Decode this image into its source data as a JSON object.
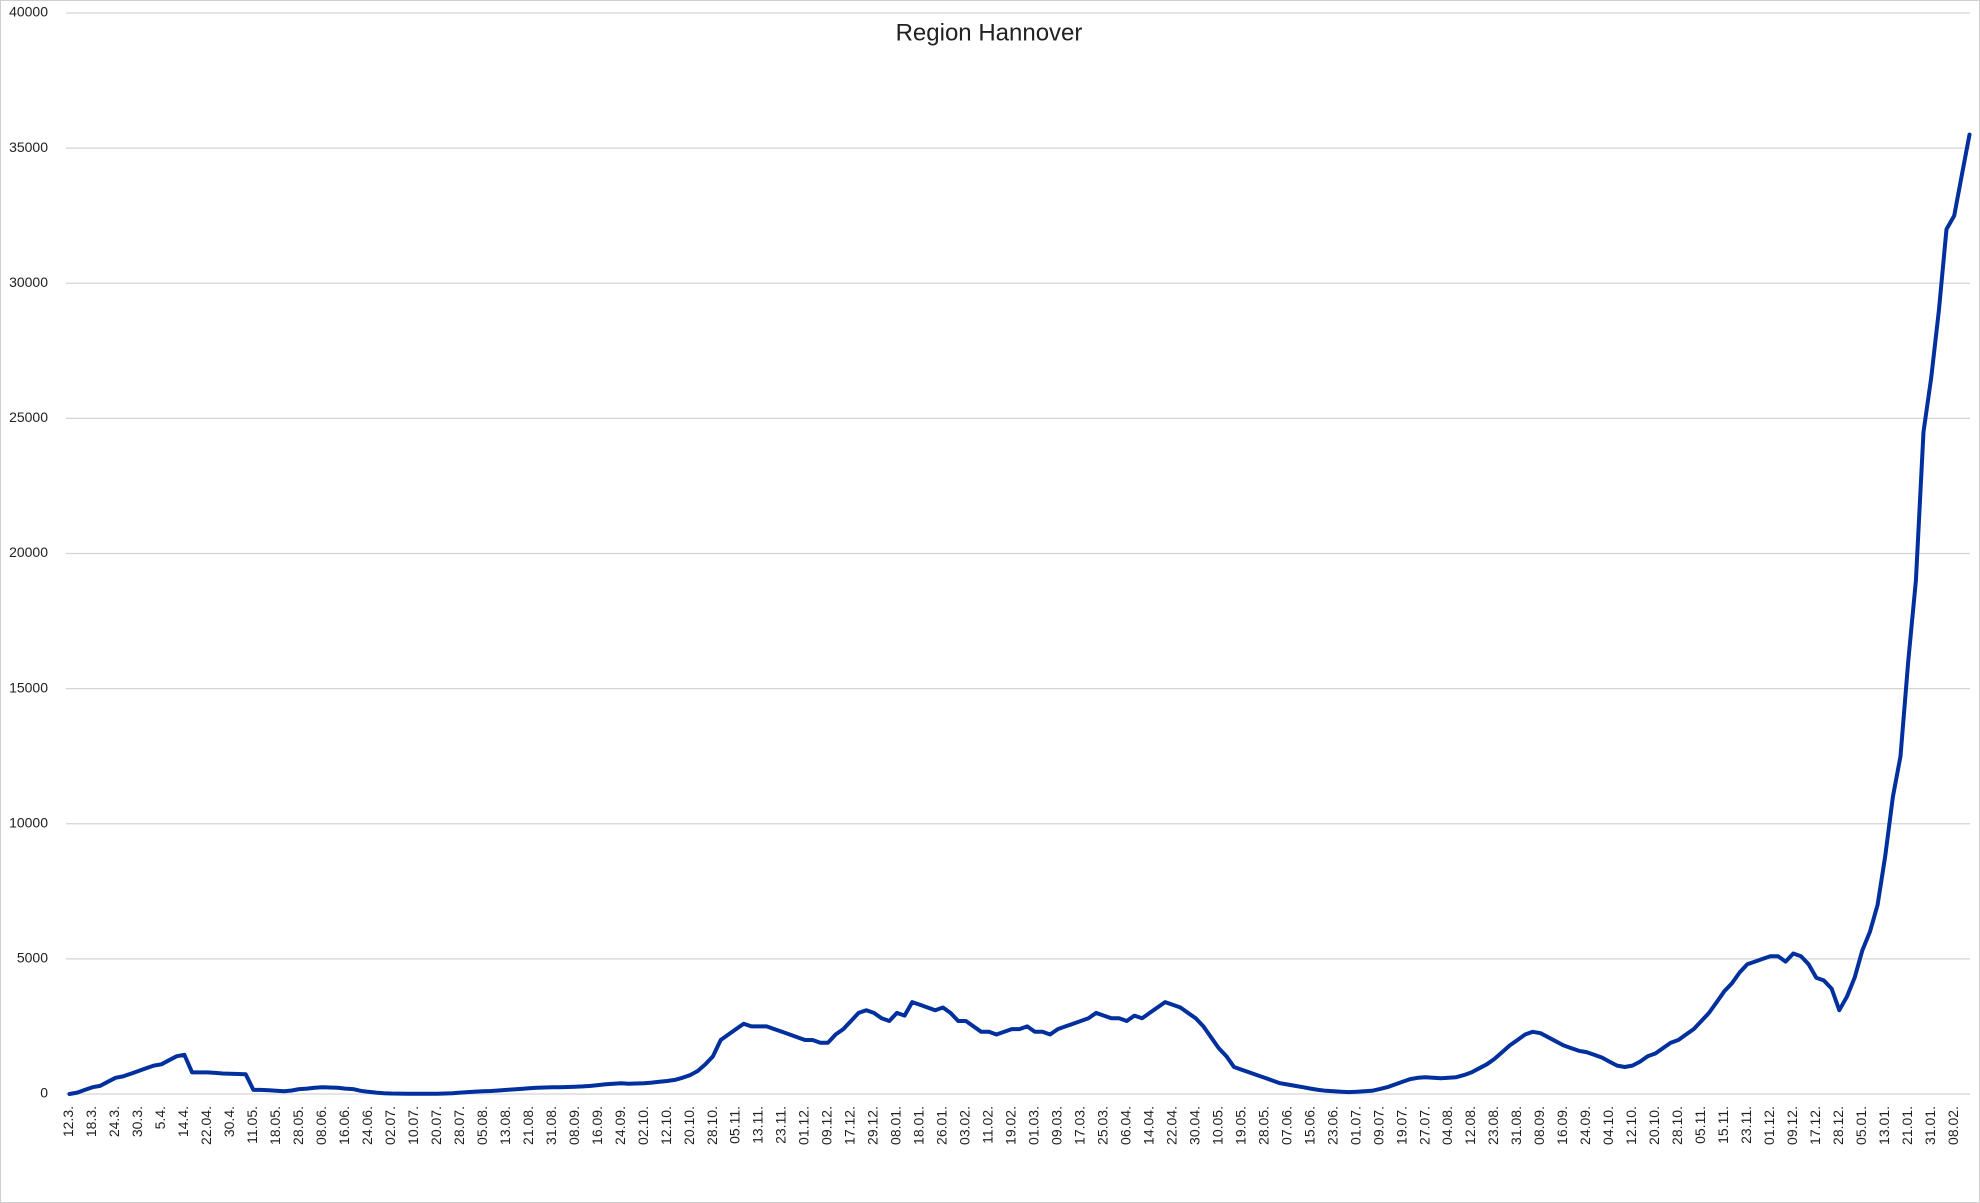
{
  "chart_data": {
    "type": "line",
    "title": "Region Hannover",
    "categories": [
      "12.3.",
      null,
      null,
      "18.3.",
      null,
      null,
      "24.3.",
      null,
      null,
      "30.3.",
      null,
      null,
      "5.4.",
      null,
      null,
      "14.4.",
      null,
      null,
      "22.04.",
      null,
      null,
      "30.4.",
      null,
      null,
      "11.05.",
      null,
      null,
      "18.05.",
      null,
      null,
      "28.05.",
      null,
      null,
      "08.06.",
      null,
      null,
      "16.06.",
      null,
      null,
      "24.06.",
      null,
      null,
      "02.07.",
      null,
      null,
      "10.07.",
      null,
      null,
      "20.07.",
      null,
      null,
      "28.07.",
      null,
      null,
      "05.08.",
      null,
      null,
      "13.08.",
      null,
      null,
      "21.08.",
      null,
      null,
      "31.08.",
      null,
      null,
      "08.09.",
      null,
      null,
      "16.09.",
      null,
      null,
      "24.09.",
      null,
      null,
      "02.10.",
      null,
      null,
      "12.10.",
      null,
      null,
      "20.10.",
      null,
      null,
      "28.10.",
      null,
      null,
      "05.11.",
      null,
      null,
      "13.11.",
      null,
      null,
      "23.11.",
      null,
      null,
      "01.12.",
      null,
      null,
      "09.12.",
      null,
      null,
      "17.12.",
      null,
      null,
      "29.12.",
      null,
      null,
      "08.01.",
      null,
      null,
      "18.01.",
      null,
      null,
      "26.01.",
      null,
      null,
      "03.02.",
      null,
      null,
      "11.02.",
      null,
      null,
      "19.02.",
      null,
      null,
      "01.03.",
      null,
      null,
      "09.03.",
      null,
      null,
      "17.03.",
      null,
      null,
      "25.03.",
      null,
      null,
      "06.04.",
      null,
      null,
      "14.04.",
      null,
      null,
      "22.04.",
      null,
      null,
      "30.04.",
      null,
      null,
      "10.05.",
      null,
      null,
      "19.05.",
      null,
      null,
      "28.05.",
      null,
      null,
      "07.06.",
      null,
      null,
      "15.06.",
      null,
      null,
      "23.06.",
      null,
      null,
      "01.07.",
      null,
      null,
      "09.07.",
      null,
      null,
      "19.07.",
      null,
      null,
      "27.07.",
      null,
      null,
      "04.08.",
      null,
      null,
      "12.08.",
      null,
      null,
      "23.08.",
      null,
      null,
      "31.08.",
      null,
      null,
      "08.09.",
      null,
      null,
      "16.09.",
      null,
      null,
      "24.09.",
      null,
      null,
      "04.10.",
      null,
      null,
      "12.10.",
      null,
      null,
      "20.10.",
      null,
      null,
      "28.10.",
      null,
      null,
      "05.11.",
      null,
      null,
      "15.11.",
      null,
      null,
      "23.11.",
      null,
      null,
      "01.12.",
      null,
      null,
      "09.12.",
      null,
      null,
      "17.12.",
      null,
      null,
      "28.12.",
      null,
      null,
      "05.01.",
      null,
      null,
      "13.01.",
      null,
      null,
      "21.01.",
      null,
      null,
      "31.01.",
      null,
      null,
      "08.02.",
      null,
      null
    ],
    "values": [
      0,
      50,
      150,
      250,
      300,
      450,
      600,
      650,
      750,
      850,
      950,
      1050,
      1100,
      1250,
      1400,
      1450,
      800,
      800,
      800,
      780,
      760,
      750,
      740,
      730,
      150,
      150,
      140,
      120,
      100,
      130,
      180,
      200,
      230,
      250,
      240,
      230,
      200,
      180,
      120,
      80,
      50,
      30,
      20,
      15,
      10,
      10,
      10,
      10,
      10,
      20,
      30,
      50,
      70,
      90,
      100,
      110,
      130,
      150,
      170,
      190,
      210,
      230,
      240,
      250,
      250,
      260,
      270,
      280,
      300,
      330,
      360,
      380,
      400,
      380,
      390,
      400,
      420,
      450,
      480,
      520,
      600,
      700,
      850,
      1100,
      1400,
      2000,
      2200,
      2400,
      2600,
      2500,
      2500,
      2500,
      2400,
      2300,
      2200,
      2100,
      2000,
      2000,
      1900,
      1900,
      2200,
      2400,
      2700,
      3000,
      3100,
      3000,
      2800,
      2700,
      3000,
      2900,
      3400,
      3300,
      3200,
      3100,
      3200,
      3000,
      2700,
      2700,
      2500,
      2300,
      2300,
      2200,
      2300,
      2400,
      2400,
      2500,
      2300,
      2300,
      2200,
      2400,
      2500,
      2600,
      2700,
      2800,
      3000,
      2900,
      2800,
      2800,
      2700,
      2900,
      2800,
      3000,
      3200,
      3400,
      3300,
      3200,
      3000,
      2800,
      2500,
      2100,
      1700,
      1400,
      1000,
      900,
      800,
      700,
      600,
      500,
      400,
      350,
      300,
      250,
      200,
      150,
      120,
      100,
      80,
      70,
      80,
      100,
      120,
      180,
      250,
      350,
      450,
      550,
      600,
      620,
      600,
      580,
      600,
      620,
      700,
      800,
      950,
      1100,
      1300,
      1550,
      1800,
      2000,
      2200,
      2300,
      2250,
      2100,
      1950,
      1800,
      1700,
      1600,
      1550,
      1450,
      1350,
      1200,
      1050,
      1000,
      1050,
      1200,
      1400,
      1500,
      1700,
      1900,
      2000,
      2200,
      2400,
      2700,
      3000,
      3400,
      3800,
      4100,
      4500,
      4800,
      4900,
      5000,
      5100,
      5100,
      4900,
      5200,
      5100,
      4800,
      4300,
      4200,
      3900,
      3100,
      3600,
      4300,
      5300,
      6000,
      7000,
      8800,
      11000,
      12500,
      16000,
      19000,
      24500,
      26500,
      29000,
      32000,
      32500,
      34000,
      35500
    ],
    "color": "#002f9e",
    "ylim": [
      0,
      40000
    ],
    "yticks": [
      0,
      5000,
      10000,
      15000,
      20000,
      25000,
      30000,
      35000,
      40000
    ],
    "grid": true
  }
}
